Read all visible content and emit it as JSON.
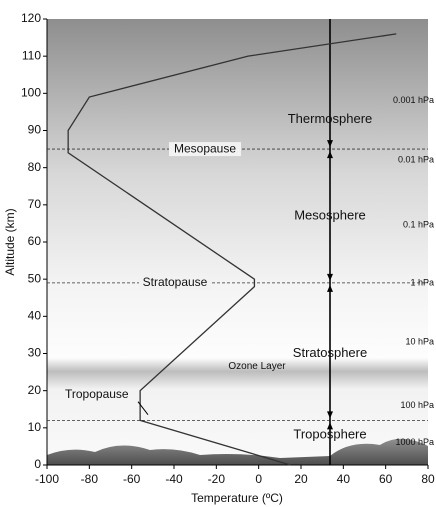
{
  "chart_data": {
    "type": "line",
    "x_label": "Temperature (ºC)",
    "y_label": "Altitude (km)",
    "x": [
      15,
      -56,
      -56,
      -2,
      -2,
      -90,
      -90,
      -80,
      -5,
      65
    ],
    "values": [
      0,
      12,
      20,
      48,
      50,
      84,
      90,
      99,
      110,
      116
    ],
    "color": "#333333",
    "xlim": [
      -100,
      80
    ],
    "ylim": [
      0,
      120
    ],
    "xticks": [
      -100,
      -80,
      -60,
      -40,
      -20,
      0,
      20,
      40,
      60,
      80
    ],
    "yticks": [
      0,
      10,
      20,
      30,
      40,
      50,
      60,
      70,
      80,
      90,
      100,
      110,
      120
    ],
    "dashed_lines": [
      12,
      49,
      85
    ],
    "boundaries": [
      {
        "name": "Stratopause",
        "altitude": 49
      },
      {
        "name": "Mesopause",
        "altitude": 85
      }
    ],
    "tropopause": {
      "name": "Tropopause",
      "altitude": 20
    },
    "layers": [
      {
        "name": "Troposphere",
        "altitude": 8
      },
      {
        "name": "Stratosphere",
        "altitude": 30
      },
      {
        "name": "Mesosphere",
        "altitude": 67
      },
      {
        "name": "Thermosphere",
        "altitude": 93
      }
    ],
    "ozone": {
      "name": "Ozone Layer",
      "altitude": 26.5
    },
    "pressure_levels": [
      {
        "label": "1000 hPa",
        "altitude": 6
      },
      {
        "label": "100 hPa",
        "altitude": 16
      },
      {
        "label": "10 hPa",
        "altitude": 33
      },
      {
        "label": "1 hPa",
        "altitude": 49
      },
      {
        "label": "0.1 hPa",
        "altitude": 64.5
      },
      {
        "label": "0.01 hPa",
        "altitude": 82
      },
      {
        "label": "0.001 hPa",
        "altitude": 98
      }
    ]
  }
}
